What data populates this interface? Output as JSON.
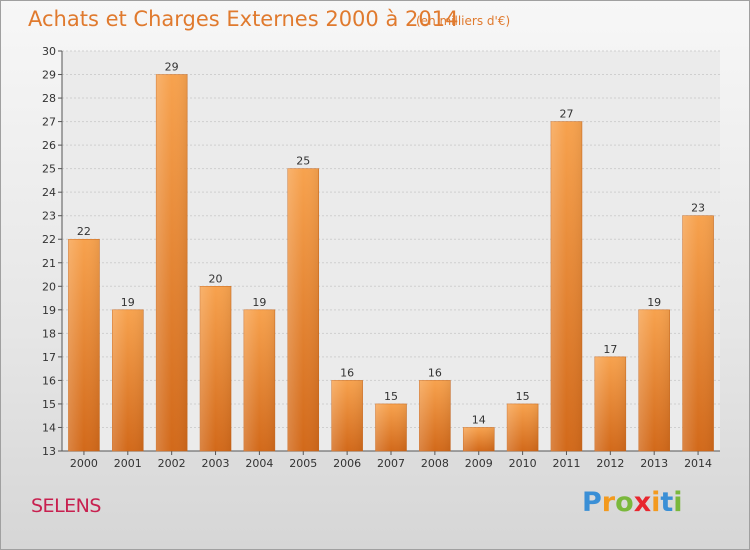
{
  "chart_data": {
    "type": "bar",
    "title": "Achats et Charges Externes 2000 à 2014",
    "unit_note": "(en milliers d'€)",
    "categories": [
      "2000",
      "2001",
      "2002",
      "2003",
      "2004",
      "2005",
      "2006",
      "2007",
      "2008",
      "2009",
      "2010",
      "2011",
      "2012",
      "2013",
      "2014"
    ],
    "values": [
      22,
      19,
      29,
      20,
      19,
      25,
      16,
      15,
      16,
      14,
      15,
      27,
      17,
      19,
      23
    ],
    "ylim": [
      13,
      30
    ],
    "yticks": [
      13,
      14,
      15,
      16,
      17,
      18,
      19,
      20,
      21,
      22,
      23,
      24,
      25,
      26,
      27,
      28,
      29,
      30
    ],
    "grid": true,
    "legend": "none",
    "bar_color": "#f0913e",
    "bar_color_dark": "#d66e1c"
  },
  "footer": {
    "city": "SELENS",
    "brand_letters": [
      "P",
      "r",
      "o",
      "x",
      "i",
      "t",
      "i"
    ],
    "brand_colors": [
      "#3a8fd6",
      "#f39a1e",
      "#7ab83c",
      "#e8262e",
      "#f39a1e",
      "#3a8fd6",
      "#7ab83c"
    ]
  },
  "colors": {
    "title": "#e07a2e",
    "city": "#c8204f"
  }
}
